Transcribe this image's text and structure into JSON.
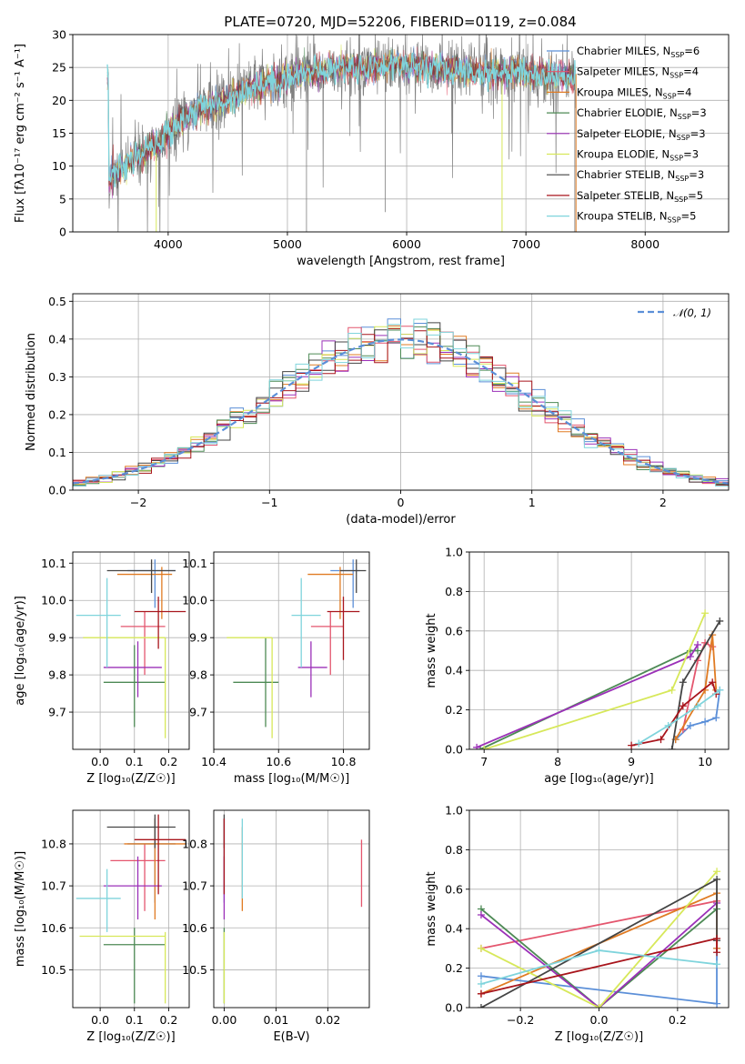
{
  "figure": {
    "title": "PLATE=0720, MJD=52206, FIBERID=0119, z=0.084"
  },
  "models": [
    {
      "name": "Chabrier MILES",
      "nssp": 6,
      "color": "#5b8fd8"
    },
    {
      "name": "Salpeter MILES",
      "nssp": 4,
      "color": "#e4566e"
    },
    {
      "name": "Kroupa MILES",
      "nssp": 4,
      "color": "#e07b23"
    },
    {
      "name": "Chabrier ELODIE",
      "nssp": 3,
      "color": "#4d8a55"
    },
    {
      "name": "Salpeter ELODIE",
      "nssp": 3,
      "color": "#9b30b8"
    },
    {
      "name": "Kroupa ELODIE",
      "nssp": 3,
      "color": "#d7e85a"
    },
    {
      "name": "Chabrier STELIB",
      "nssp": 3,
      "color": "#444444"
    },
    {
      "name": "Salpeter STELIB",
      "nssp": 5,
      "color": "#a8151c"
    },
    {
      "name": "Kroupa STELIB",
      "nssp": 5,
      "color": "#7fd4dc"
    }
  ],
  "chart_data": [
    {
      "id": "spectrum",
      "type": "line",
      "xlabel": "wavelength [Angstrom, rest frame]",
      "ylabel": "Flux [fλ10⁻¹⁷ erg cm⁻² s⁻¹ A⁻¹]",
      "xlim": [
        3200,
        8700
      ],
      "ylim": [
        0,
        30
      ],
      "xticks": [
        4000,
        5000,
        6000,
        7000,
        8000
      ],
      "yticks": [
        0,
        5,
        10,
        15,
        20,
        25,
        30
      ],
      "legend": "right",
      "continuum": [
        [
          3500,
          8
        ],
        [
          3700,
          11
        ],
        [
          3900,
          13
        ],
        [
          4100,
          17
        ],
        [
          4300,
          19
        ],
        [
          4500,
          20
        ],
        [
          4700,
          22
        ],
        [
          4900,
          23
        ],
        [
          5100,
          24
        ],
        [
          5300,
          24.5
        ],
        [
          5500,
          25
        ],
        [
          5700,
          25
        ],
        [
          5900,
          25.5
        ],
        [
          6100,
          25
        ],
        [
          6300,
          24.5
        ],
        [
          6500,
          24.5
        ],
        [
          6700,
          24
        ],
        [
          6900,
          24.5
        ],
        [
          7100,
          24
        ],
        [
          7300,
          23.5
        ],
        [
          7420,
          23.5
        ]
      ],
      "data_range": [
        3490,
        7420
      ],
      "model_range": [
        3490,
        7420
      ]
    },
    {
      "id": "residuals",
      "type": "histogram",
      "xlabel": "(data-model)/error",
      "ylabel": "Normed distribution",
      "xlim": [
        -2.5,
        2.5
      ],
      "ylim": [
        0,
        0.52
      ],
      "xticks": [
        -2,
        -1,
        0,
        1,
        2
      ],
      "yticks": [
        0,
        0.1,
        0.2,
        0.3,
        0.4,
        0.5
      ],
      "legend_label": "𝒩(0, 1)",
      "reference": {
        "type": "gaussian",
        "mean": 0,
        "sigma": 1,
        "color": "#5b8fd8"
      },
      "bin_width": 0.1
    },
    {
      "id": "age_vs_Z",
      "type": "errorbar",
      "xlabel": "Z [log₁₀(Z/Z☉)]",
      "ylabel": "age  [log₁₀(age/yr)]",
      "xlim": [
        -0.08,
        0.26
      ],
      "ylim": [
        9.6,
        10.13
      ],
      "xticks": [
        0.0,
        0.1,
        0.2
      ],
      "yticks": [
        9.7,
        9.8,
        9.9,
        10.0,
        10.1
      ],
      "points": [
        {
          "model": 0,
          "x": 0.16,
          "y": 10.08,
          "xerr": [
            0.08,
            0.06
          ],
          "yerr": [
            0.1,
            0.03
          ]
        },
        {
          "model": 1,
          "x": 0.13,
          "y": 9.93,
          "xerr": [
            0.07,
            0.06
          ],
          "yerr": [
            0.13,
            0.04
          ]
        },
        {
          "model": 2,
          "x": 0.18,
          "y": 10.07,
          "xerr": [
            0.13,
            0.03
          ],
          "yerr": [
            0.12,
            0.02
          ]
        },
        {
          "model": 3,
          "x": 0.1,
          "y": 9.78,
          "xerr": [
            0.09,
            0.09
          ],
          "yerr": [
            0.12,
            0.1
          ]
        },
        {
          "model": 4,
          "x": 0.11,
          "y": 9.82,
          "xerr": [
            0.1,
            0.07
          ],
          "yerr": [
            0.08,
            0.07
          ]
        },
        {
          "model": 5,
          "x": 0.19,
          "y": 9.9,
          "xerr": [
            0.24,
            0.0
          ],
          "yerr": [
            0.27,
            0.0
          ]
        },
        {
          "model": 6,
          "x": 0.15,
          "y": 10.08,
          "xerr": [
            0.13,
            0.07
          ],
          "yerr": [
            0.06,
            0.03
          ]
        },
        {
          "model": 7,
          "x": 0.17,
          "y": 9.97,
          "xerr": [
            0.07,
            0.08
          ],
          "yerr": [
            0.1,
            0.04
          ]
        },
        {
          "model": 8,
          "x": 0.02,
          "y": 9.96,
          "xerr": [
            0.09,
            0.04
          ],
          "yerr": [
            0.14,
            0.1
          ]
        }
      ]
    },
    {
      "id": "age_vs_mass",
      "type": "errorbar",
      "xlabel": "mass [log₁₀(M/M☉)]",
      "ylabel": "",
      "xlim": [
        10.4,
        10.88
      ],
      "ylim": [
        9.6,
        10.13
      ],
      "xticks": [
        10.4,
        10.6,
        10.8
      ],
      "yticks": [
        9.7,
        9.8,
        9.9,
        10.0,
        10.1
      ],
      "points": [
        {
          "model": 0,
          "x": 10.83,
          "y": 10.08,
          "xerr": [
            0.07,
            0.02
          ],
          "yerr": [
            0.1,
            0.03
          ]
        },
        {
          "model": 1,
          "x": 10.76,
          "y": 9.93,
          "xerr": [
            0.06,
            0.04
          ],
          "yerr": [
            0.13,
            0.04
          ]
        },
        {
          "model": 2,
          "x": 10.79,
          "y": 10.07,
          "xerr": [
            0.1,
            0.04
          ],
          "yerr": [
            0.12,
            0.02
          ]
        },
        {
          "model": 3,
          "x": 10.56,
          "y": 9.78,
          "xerr": [
            0.1,
            0.04
          ],
          "yerr": [
            0.12,
            0.12
          ]
        },
        {
          "model": 4,
          "x": 10.7,
          "y": 9.82,
          "xerr": [
            0.04,
            0.05
          ],
          "yerr": [
            0.08,
            0.07
          ]
        },
        {
          "model": 5,
          "x": 10.58,
          "y": 9.9,
          "xerr": [
            0.14,
            0.0
          ],
          "yerr": [
            0.27,
            0.0
          ]
        },
        {
          "model": 6,
          "x": 10.84,
          "y": 10.08,
          "xerr": [
            0.05,
            0.03
          ],
          "yerr": [
            0.06,
            0.03
          ]
        },
        {
          "model": 7,
          "x": 10.8,
          "y": 9.97,
          "xerr": [
            0.05,
            0.05
          ],
          "yerr": [
            0.13,
            0.04
          ]
        },
        {
          "model": 8,
          "x": 10.67,
          "y": 9.96,
          "xerr": [
            0.03,
            0.06
          ],
          "yerr": [
            0.14,
            0.1
          ]
        }
      ]
    },
    {
      "id": "massweight_vs_age",
      "type": "line",
      "xlabel": "age  [log₁₀(age/yr)]",
      "ylabel": "mass weight",
      "xlim": [
        6.8,
        10.32
      ],
      "ylim": [
        0,
        1.0
      ],
      "xticks": [
        7,
        8,
        9,
        10
      ],
      "yticks": [
        0.0,
        0.2,
        0.4,
        0.6,
        0.8,
        1.0
      ],
      "series": [
        {
          "model": 0,
          "points": [
            [
              9.6,
              0.05
            ],
            [
              9.8,
              0.12
            ],
            [
              10.0,
              0.14
            ],
            [
              10.15,
              0.16
            ],
            [
              10.2,
              0.3
            ]
          ]
        },
        {
          "model": 1,
          "points": [
            [
              9.7,
              0.1
            ],
            [
              9.9,
              0.45
            ],
            [
              10.0,
              0.54
            ],
            [
              10.1,
              0.52
            ]
          ]
        },
        {
          "model": 2,
          "points": [
            [
              9.6,
              0.05
            ],
            [
              10.0,
              0.3
            ],
            [
              10.1,
              0.58
            ],
            [
              10.15,
              0.3
            ]
          ]
        },
        {
          "model": 3,
          "points": [
            [
              6.95,
              0.0
            ],
            [
              9.8,
              0.5
            ],
            [
              9.9,
              0.5
            ]
          ]
        },
        {
          "model": 4,
          "points": [
            [
              6.9,
              0.01
            ],
            [
              9.8,
              0.47
            ],
            [
              9.9,
              0.53
            ]
          ]
        },
        {
          "model": 5,
          "points": [
            [
              7.0,
              0.0
            ],
            [
              9.55,
              0.3
            ],
            [
              10.0,
              0.69
            ]
          ]
        },
        {
          "model": 6,
          "points": [
            [
              9.55,
              0.0
            ],
            [
              9.7,
              0.34
            ],
            [
              10.2,
              0.65
            ]
          ]
        },
        {
          "model": 7,
          "points": [
            [
              9.0,
              0.02
            ],
            [
              9.4,
              0.05
            ],
            [
              9.7,
              0.22
            ],
            [
              10.1,
              0.34
            ],
            [
              10.15,
              0.28
            ]
          ]
        },
        {
          "model": 8,
          "points": [
            [
              9.1,
              0.03
            ],
            [
              9.5,
              0.12
            ],
            [
              9.9,
              0.22
            ],
            [
              10.2,
              0.3
            ]
          ]
        }
      ]
    },
    {
      "id": "mass_vs_Z",
      "type": "errorbar",
      "xlabel": "Z [log₁₀(Z/Z☉)]",
      "ylabel": "mass [log₁₀(M/M☉)]",
      "xlim": [
        -0.08,
        0.26
      ],
      "ylim": [
        10.41,
        10.88
      ],
      "xticks": [
        0.0,
        0.1,
        0.2
      ],
      "yticks": [
        10.5,
        10.6,
        10.7,
        10.8
      ],
      "points": [
        {
          "model": 0,
          "x": 0.16,
          "y": 10.8,
          "xerr": [
            0.08,
            0.06
          ],
          "yerr": [
            0.14,
            0.06
          ]
        },
        {
          "model": 1,
          "x": 0.13,
          "y": 10.76,
          "xerr": [
            0.1,
            0.06
          ],
          "yerr": [
            0.12,
            0.04
          ]
        },
        {
          "model": 2,
          "x": 0.16,
          "y": 10.8,
          "xerr": [
            0.09,
            0.09
          ],
          "yerr": [
            0.18,
            0.06
          ]
        },
        {
          "model": 3,
          "x": 0.1,
          "y": 10.56,
          "xerr": [
            0.09,
            0.09
          ],
          "yerr": [
            0.14,
            0.04
          ]
        },
        {
          "model": 4,
          "x": 0.11,
          "y": 10.7,
          "xerr": [
            0.1,
            0.07
          ],
          "yerr": [
            0.08,
            0.07
          ]
        },
        {
          "model": 5,
          "x": 0.19,
          "y": 10.58,
          "xerr": [
            0.25,
            0.0
          ],
          "yerr": [
            0.16,
            0.01
          ]
        },
        {
          "model": 6,
          "x": 0.16,
          "y": 10.84,
          "xerr": [
            0.14,
            0.06
          ],
          "yerr": [
            0.05,
            0.03
          ]
        },
        {
          "model": 7,
          "x": 0.17,
          "y": 10.81,
          "xerr": [
            0.07,
            0.08
          ],
          "yerr": [
            0.13,
            0.06
          ]
        },
        {
          "model": 8,
          "x": 0.02,
          "y": 10.67,
          "xerr": [
            0.09,
            0.04
          ],
          "yerr": [
            0.08,
            0.07
          ]
        }
      ]
    },
    {
      "id": "mass_vs_ebv",
      "type": "errorbar",
      "xlabel": "E(B-V)",
      "ylabel": "",
      "xlim": [
        -0.002,
        0.028
      ],
      "ylim": [
        10.41,
        10.88
      ],
      "xticks": [
        0.0,
        0.01,
        0.02
      ],
      "yticks": [
        10.5,
        10.6,
        10.7,
        10.8
      ],
      "points": [
        {
          "model": 0,
          "x": 0.0,
          "y": 10.8,
          "xerr": [
            0,
            0
          ],
          "yerr": [
            0.14,
            0.06
          ]
        },
        {
          "model": 1,
          "x": 0.0265,
          "y": 10.72,
          "xerr": [
            0,
            0
          ],
          "yerr": [
            0.07,
            0.09
          ]
        },
        {
          "model": 2,
          "x": 0.0035,
          "y": 10.78,
          "xerr": [
            0,
            0
          ],
          "yerr": [
            0.14,
            0.06
          ]
        },
        {
          "model": 3,
          "x": 0.0,
          "y": 10.56,
          "xerr": [
            0,
            0
          ],
          "yerr": [
            0.14,
            0.04
          ]
        },
        {
          "model": 4,
          "x": 0.0,
          "y": 10.7,
          "xerr": [
            0,
            0
          ],
          "yerr": [
            0.08,
            0.07
          ]
        },
        {
          "model": 5,
          "x": 0.0,
          "y": 10.58,
          "xerr": [
            0,
            0
          ],
          "yerr": [
            0.16,
            0.01
          ]
        },
        {
          "model": 6,
          "x": 0.0,
          "y": 10.84,
          "xerr": [
            0,
            0
          ],
          "yerr": [
            0.05,
            0.03
          ]
        },
        {
          "model": 7,
          "x": 0.0,
          "y": 10.81,
          "xerr": [
            0,
            0
          ],
          "yerr": [
            0.13,
            0.05
          ]
        },
        {
          "model": 8,
          "x": 0.0035,
          "y": 10.73,
          "xerr": [
            0,
            0
          ],
          "yerr": [
            0.06,
            0.13
          ]
        }
      ]
    },
    {
      "id": "massweight_vs_Z",
      "type": "line",
      "xlabel": "Z [log₁₀(Z/Z☉)]",
      "ylabel": "mass weight",
      "xlim": [
        -0.33,
        0.33
      ],
      "ylim": [
        0,
        1.0
      ],
      "xticks": [
        -0.2,
        0.0,
        0.2
      ],
      "yticks": [
        0.0,
        0.2,
        0.4,
        0.6,
        0.8,
        1.0
      ],
      "series": [
        {
          "model": 0,
          "points": [
            [
              -0.3,
              0.16
            ],
            [
              0.3,
              0.02
            ],
            [
              0.3,
              0.3
            ]
          ]
        },
        {
          "model": 1,
          "points": [
            [
              -0.3,
              0.3
            ],
            [
              0.3,
              0.54
            ]
          ]
        },
        {
          "model": 2,
          "points": [
            [
              -0.3,
              0.07
            ],
            [
              0.3,
              0.58
            ],
            [
              0.3,
              0.3
            ]
          ]
        },
        {
          "model": 3,
          "points": [
            [
              -0.3,
              0.5
            ],
            [
              0.0,
              0.0
            ],
            [
              0.3,
              0.5
            ]
          ]
        },
        {
          "model": 4,
          "points": [
            [
              -0.3,
              0.47
            ],
            [
              0.0,
              0.0
            ],
            [
              0.3,
              0.53
            ]
          ]
        },
        {
          "model": 5,
          "points": [
            [
              -0.3,
              0.3
            ],
            [
              0.0,
              0.0
            ],
            [
              0.3,
              0.69
            ]
          ]
        },
        {
          "model": 6,
          "points": [
            [
              -0.3,
              0.0
            ],
            [
              0.3,
              0.65
            ],
            [
              0.3,
              0.34
            ]
          ]
        },
        {
          "model": 7,
          "points": [
            [
              -0.3,
              0.07
            ],
            [
              0.3,
              0.35
            ],
            [
              0.3,
              0.28
            ]
          ]
        },
        {
          "model": 8,
          "points": [
            [
              -0.3,
              0.12
            ],
            [
              0.0,
              0.29
            ],
            [
              0.3,
              0.22
            ]
          ]
        }
      ]
    }
  ]
}
